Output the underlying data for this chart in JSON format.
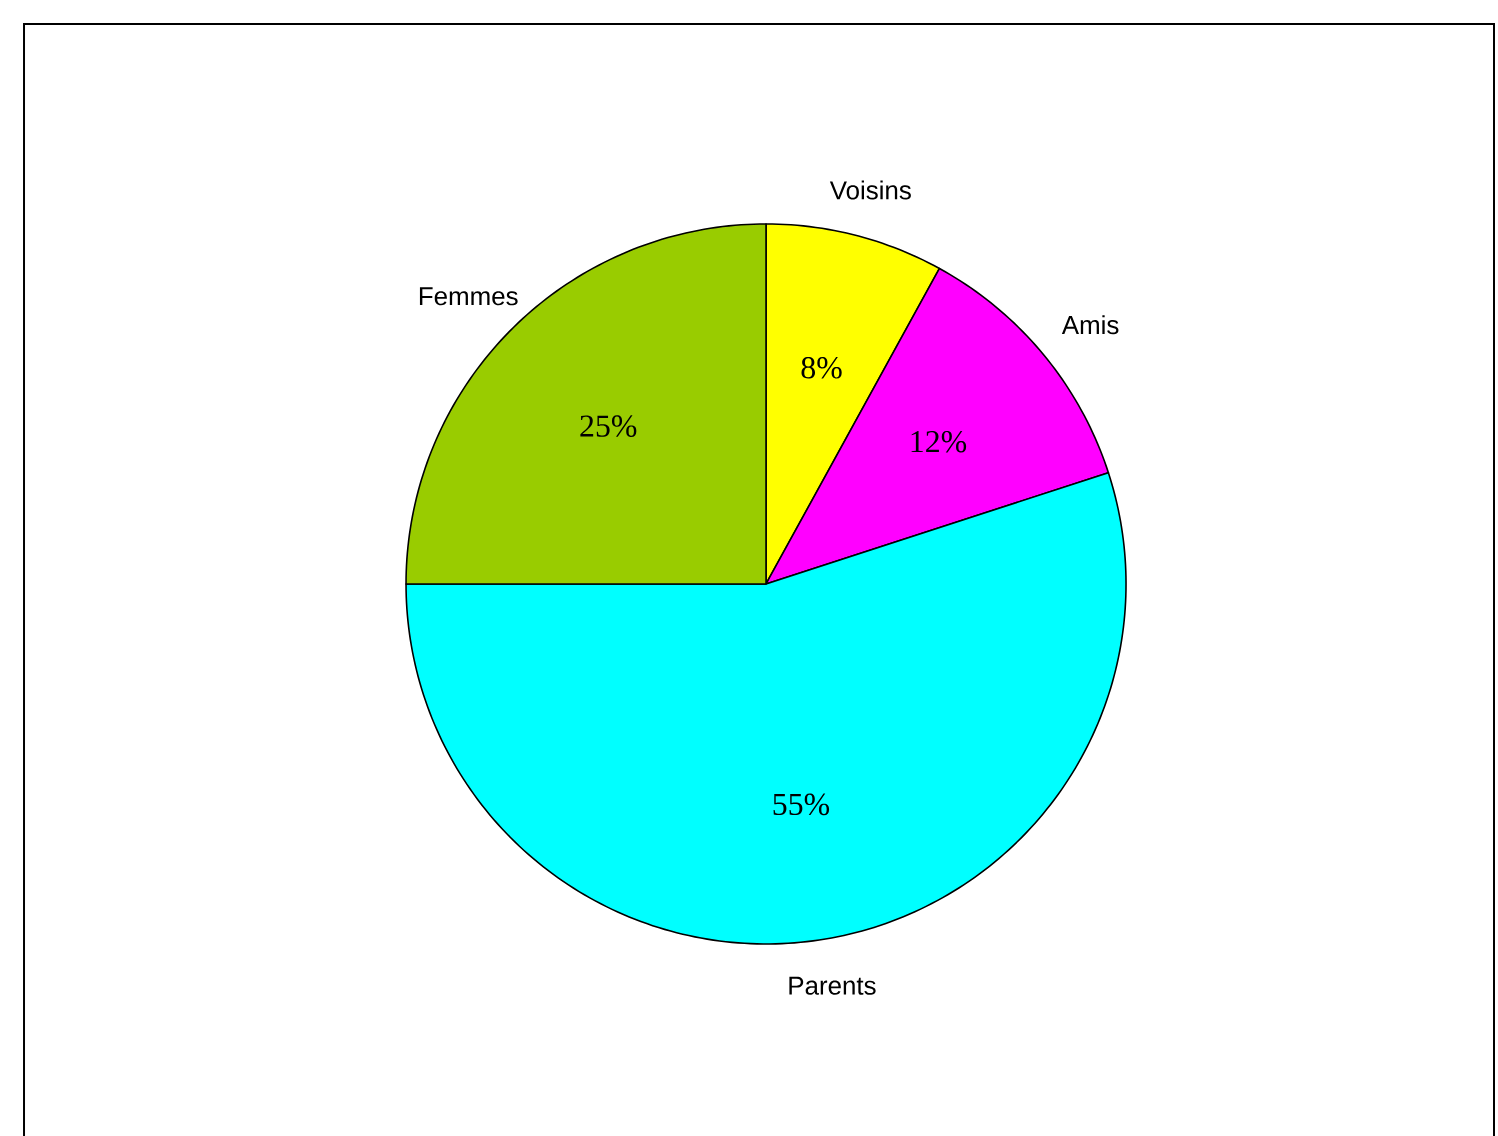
{
  "chart_data": {
    "type": "pie",
    "categories": [
      "Voisins",
      "Amis",
      "Parents",
      "Femmes"
    ],
    "values": [
      8,
      12,
      55,
      25
    ],
    "value_labels": [
      "8%",
      "12%",
      "55%",
      "25%"
    ],
    "colors": [
      "#ffff00",
      "#ff00ff",
      "#00ffff",
      "#99cc00"
    ]
  }
}
